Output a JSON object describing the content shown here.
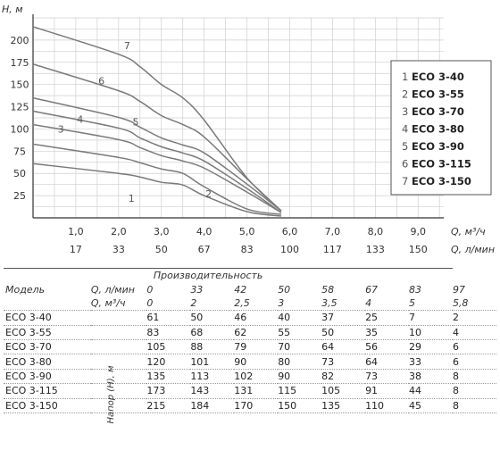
{
  "chart_data": {
    "type": "line",
    "ylabel": "H, м",
    "xlabel_q": "Q, м³/ч",
    "xlabel_l": "Q, л/мин",
    "y_ticks": [
      25,
      50,
      75,
      100,
      125,
      150,
      175,
      200
    ],
    "x_ticks": [
      "1,0",
      "2,0",
      "3,0",
      "4,0",
      "5,0",
      "6,0",
      "7,0",
      "8,0",
      "9,0"
    ],
    "x_ticks_l": [
      "17",
      "33",
      "50",
      "67",
      "83",
      "100",
      "117",
      "133",
      "150"
    ],
    "xlim": [
      0,
      9.6
    ],
    "ylim": [
      0,
      225
    ],
    "grid": true,
    "legend_position": "right",
    "series": [
      {
        "name": "ECO 3-40",
        "number": "1",
        "x": [
          0,
          2,
          2.5,
          3,
          3.5,
          4,
          5,
          5.8
        ],
        "values": [
          61,
          50,
          46,
          40,
          37,
          25,
          7,
          2
        ]
      },
      {
        "name": "ECO 3-55",
        "number": "2",
        "x": [
          0,
          2,
          2.5,
          3,
          3.5,
          4,
          5,
          5.8
        ],
        "values": [
          83,
          68,
          62,
          55,
          50,
          35,
          10,
          4
        ]
      },
      {
        "name": "ECO 3-70",
        "number": "3",
        "x": [
          0,
          2,
          2.5,
          3,
          3.5,
          4,
          5,
          5.8
        ],
        "values": [
          105,
          88,
          79,
          70,
          64,
          56,
          29,
          6
        ]
      },
      {
        "name": "ECO 3-80",
        "number": "4",
        "x": [
          0,
          2,
          2.5,
          3,
          3.5,
          4,
          5,
          5.8
        ],
        "values": [
          120,
          101,
          90,
          80,
          73,
          64,
          33,
          6
        ]
      },
      {
        "name": "ECO 3-90",
        "number": "5",
        "x": [
          0,
          2,
          2.5,
          3,
          3.5,
          4,
          5,
          5.8
        ],
        "values": [
          135,
          113,
          102,
          90,
          82,
          73,
          38,
          8
        ]
      },
      {
        "name": "ECO 3-115",
        "number": "6",
        "x": [
          0,
          2,
          2.5,
          3,
          3.5,
          4,
          5,
          5.8
        ],
        "values": [
          173,
          143,
          131,
          115,
          105,
          91,
          44,
          8
        ]
      },
      {
        "name": "ECO 3-150",
        "number": "7",
        "x": [
          0,
          2,
          2.5,
          3,
          3.5,
          4,
          5,
          5.8
        ],
        "values": [
          215,
          184,
          170,
          150,
          135,
          110,
          45,
          8
        ]
      }
    ],
    "curve_labels": [
      {
        "number": "1",
        "x": 2.3,
        "y": 18
      },
      {
        "number": "2",
        "x": 4.1,
        "y": 23
      },
      {
        "number": "3",
        "x": 0.65,
        "y": 96
      },
      {
        "number": "4",
        "x": 1.1,
        "y": 107
      },
      {
        "number": "5",
        "x": 2.4,
        "y": 104
      },
      {
        "number": "6",
        "x": 1.6,
        "y": 150
      },
      {
        "number": "7",
        "x": 2.2,
        "y": 190
      }
    ]
  },
  "table": {
    "header_perf": "Производительность",
    "header_model": "Модель",
    "q_lmin_label": "Q, л/мин",
    "q_m3h_label": "Q, м³/ч",
    "head_label": "Напор (H), м",
    "q_lmin": [
      "0",
      "33",
      "42",
      "50",
      "58",
      "67",
      "83",
      "97"
    ],
    "q_m3h": [
      "0",
      "2",
      "2,5",
      "3",
      "3,5",
      "4",
      "5",
      "5,8"
    ],
    "rows": [
      {
        "model": "ECO 3-40",
        "values": [
          "61",
          "50",
          "46",
          "40",
          "37",
          "25",
          "7",
          "2"
        ]
      },
      {
        "model": "ECO 3-55",
        "values": [
          "83",
          "68",
          "62",
          "55",
          "50",
          "35",
          "10",
          "4"
        ]
      },
      {
        "model": "ECO 3-70",
        "values": [
          "105",
          "88",
          "79",
          "70",
          "64",
          "56",
          "29",
          "6"
        ]
      },
      {
        "model": "ECO 3-80",
        "values": [
          "120",
          "101",
          "90",
          "80",
          "73",
          "64",
          "33",
          "6"
        ]
      },
      {
        "model": "ECO 3-90",
        "values": [
          "135",
          "113",
          "102",
          "90",
          "82",
          "73",
          "38",
          "8"
        ]
      },
      {
        "model": "ECO 3-115",
        "values": [
          "173",
          "143",
          "131",
          "115",
          "105",
          "91",
          "44",
          "8"
        ]
      },
      {
        "model": "ECO 3-150",
        "values": [
          "215",
          "184",
          "170",
          "150",
          "135",
          "110",
          "45",
          "8"
        ]
      }
    ]
  }
}
